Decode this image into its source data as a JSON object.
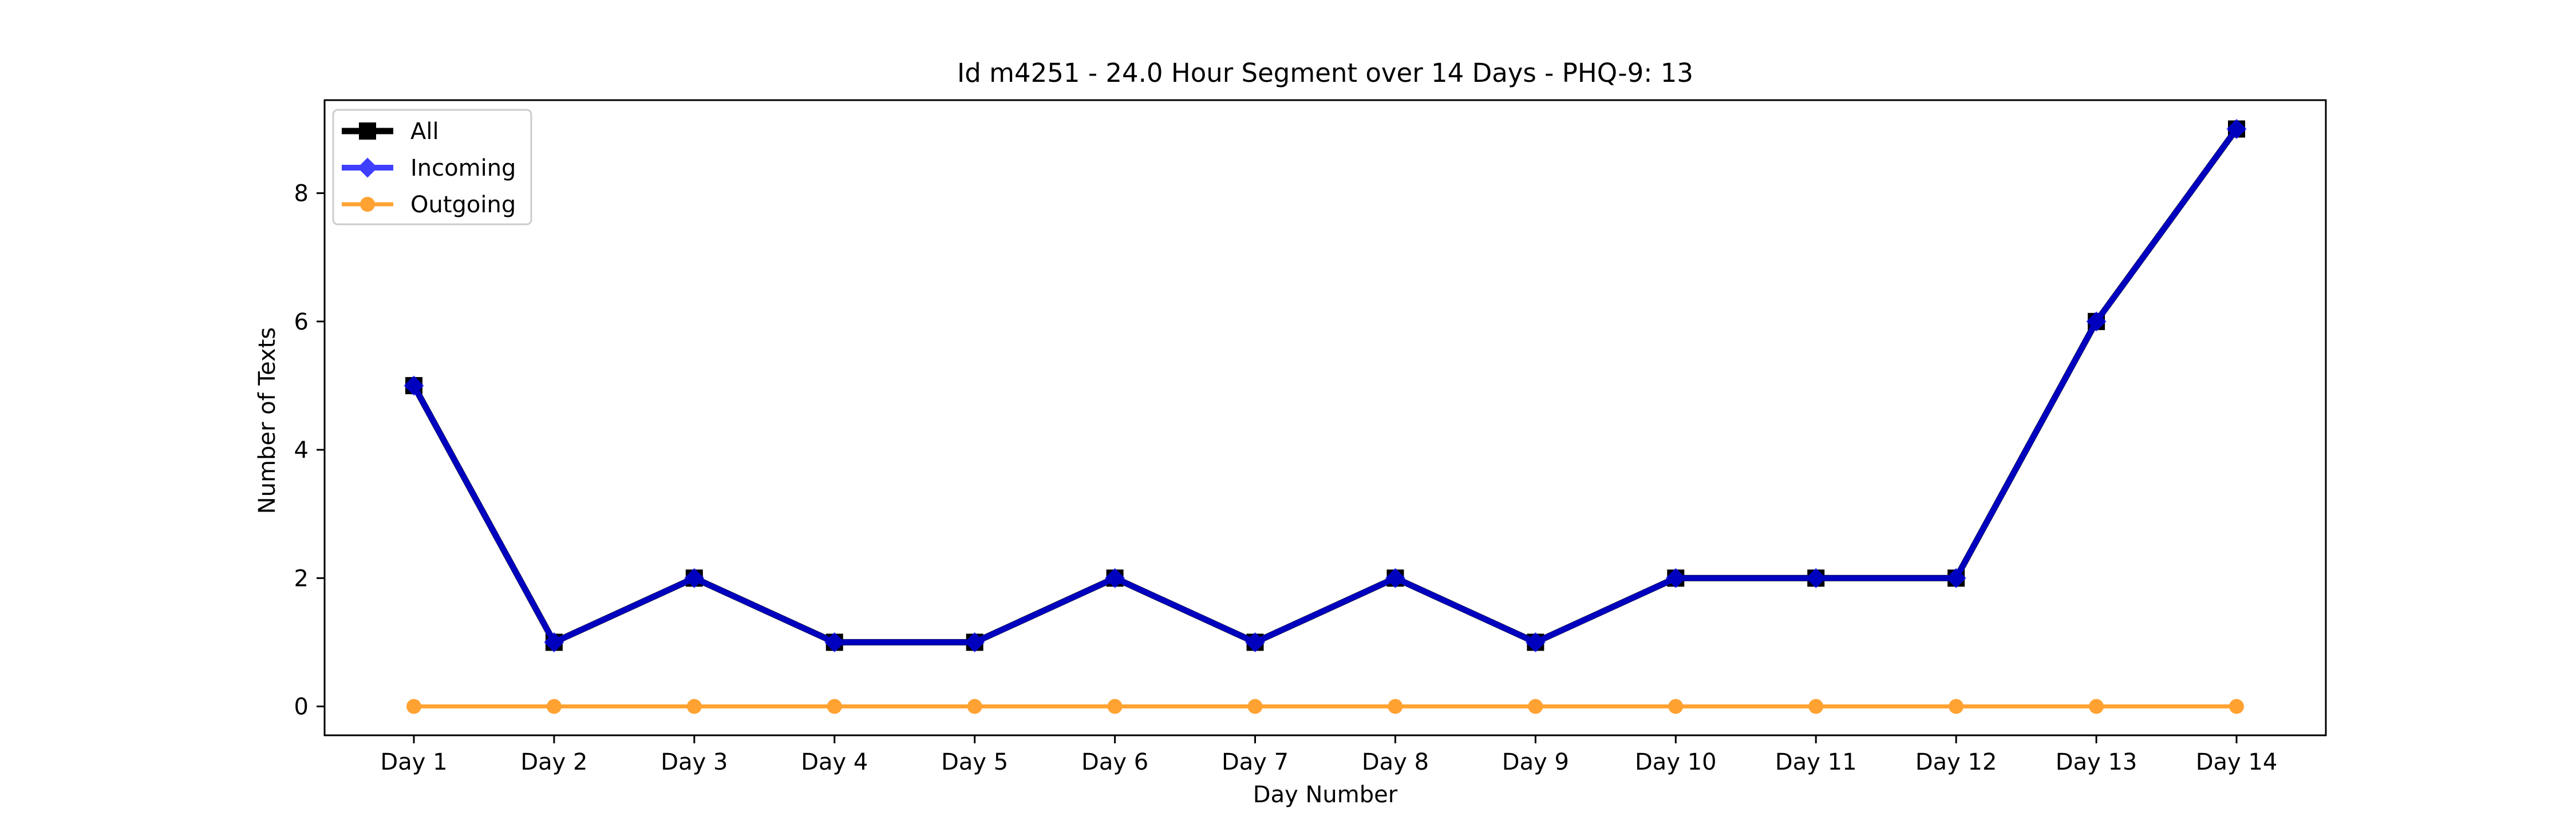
{
  "chart_data": {
    "type": "line",
    "title": "Id m4251 - 24.0 Hour Segment over 14 Days - PHQ-9: 13",
    "xlabel": "Day Number",
    "ylabel": "Number of Texts",
    "categories": [
      "Day 1",
      "Day 2",
      "Day 3",
      "Day 4",
      "Day 5",
      "Day 6",
      "Day 7",
      "Day 8",
      "Day 9",
      "Day 10",
      "Day 11",
      "Day 12",
      "Day 13",
      "Day 14"
    ],
    "yticks": [
      0,
      2,
      4,
      6,
      8
    ],
    "ylim": [
      -0.45,
      9.45
    ],
    "grid": false,
    "legend_position": "top-left",
    "series": [
      {
        "name": "All",
        "color": "#000000",
        "marker": "square",
        "values": [
          5,
          1,
          2,
          1,
          1,
          2,
          1,
          2,
          1,
          2,
          2,
          2,
          6,
          9
        ]
      },
      {
        "name": "Incoming",
        "color": "#0000ff",
        "marker": "diamond",
        "values": [
          5,
          1,
          2,
          1,
          1,
          2,
          1,
          2,
          1,
          2,
          2,
          2,
          6,
          9
        ]
      },
      {
        "name": "Outgoing",
        "color": "#ff8c00",
        "marker": "circle",
        "values": [
          0,
          0,
          0,
          0,
          0,
          0,
          0,
          0,
          0,
          0,
          0,
          0,
          0,
          0
        ]
      }
    ]
  }
}
